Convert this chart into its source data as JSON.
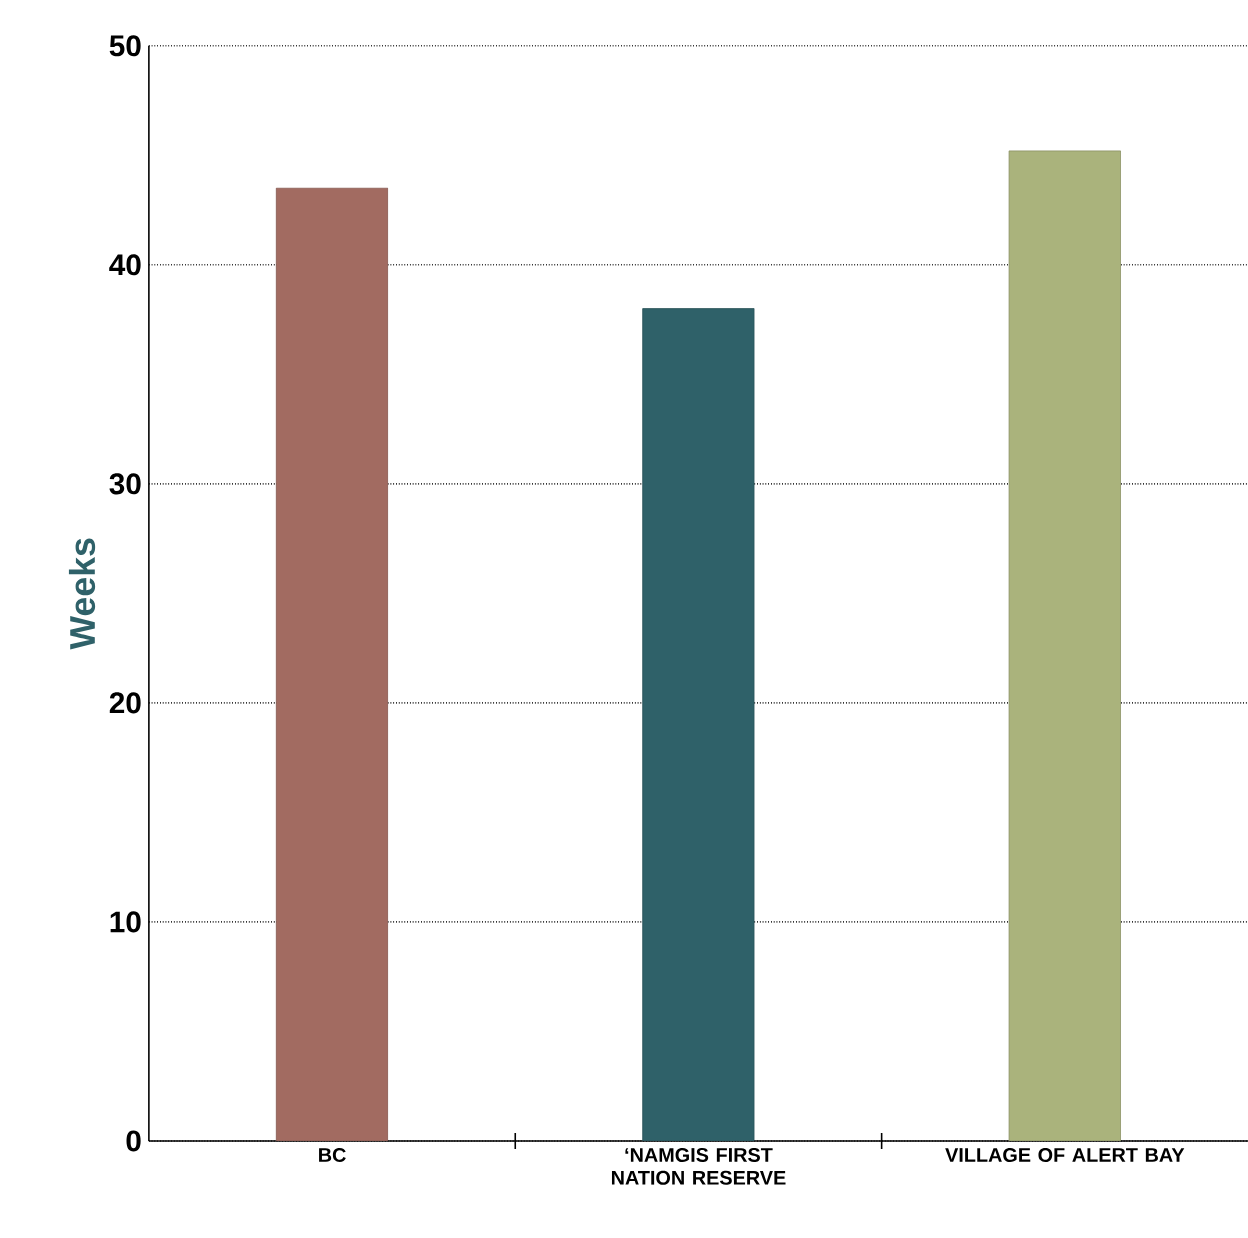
{
  "chart_data": {
    "type": "bar",
    "ylabel": "Weeks",
    "categories": [
      "BC",
      "‘NAMGIS FIRST NATION RESERVE",
      "VILLAGE OF ALERT BAY"
    ],
    "values": [
      43.5,
      38.0,
      45.2
    ],
    "colors": [
      "#a26b61",
      "#2f6169",
      "#aab37c"
    ],
    "ylim": [
      0,
      50
    ],
    "yticks": [
      0,
      10,
      20,
      30,
      40,
      50
    ],
    "grid": "y"
  }
}
